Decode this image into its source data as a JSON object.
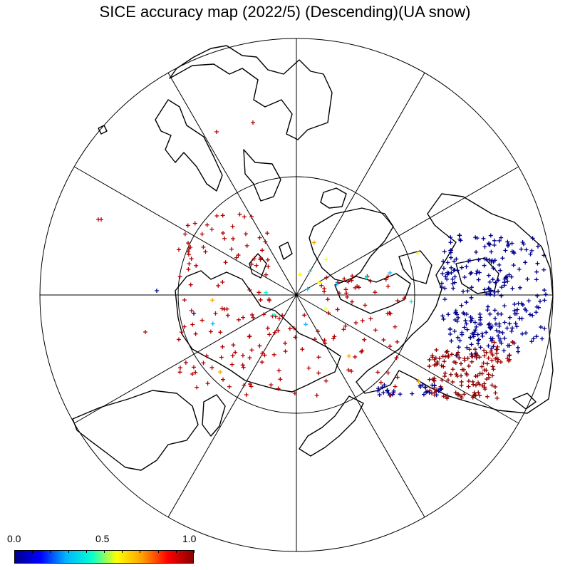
{
  "title": "SICE accuracy map (2022/5) (Descending)(UA snow)",
  "projection": "north polar stereographic",
  "graticule": {
    "meridian_step_deg": 30,
    "latitude_circles": 2
  },
  "colorbar": {
    "min_label": "0.0",
    "mid_label": "0.5",
    "max_label": "1.0",
    "min": 0.0,
    "max": 1.0,
    "stops": [
      "#00008c",
      "#0000ff",
      "#00b4ff",
      "#00ffd2",
      "#ffff00",
      "#ffa000",
      "#ff0000",
      "#8c0000"
    ]
  },
  "colors": {
    "coastline": "#000000",
    "grid": "#000000",
    "background": "#ffffff"
  },
  "point_marker": "+",
  "point_groups": [
    {
      "region": "North America interior",
      "accuracy": 0.05,
      "color": "#00008c",
      "count": "dense"
    },
    {
      "region": "North America southern band",
      "accuracy": 0.95,
      "color": "#8c0000",
      "count": "dense"
    },
    {
      "region": "Eurasia",
      "accuracy": 0.95,
      "color": "#b40000",
      "count": "scattered"
    },
    {
      "region": "Siberia / Russian Far East",
      "accuracy": 0.95,
      "color": "#b40000",
      "count": "scattered"
    },
    {
      "region": "Alaska / Bering",
      "accuracy": 0.1,
      "color": "#00008c",
      "count": "scattered"
    }
  ]
}
